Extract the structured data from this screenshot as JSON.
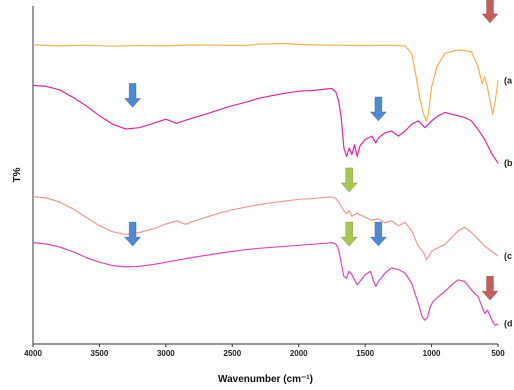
{
  "chart_data": {
    "type": "line",
    "title": "",
    "xlabel": "Wavenumber (cm⁻¹)",
    "ylabel": "T%",
    "xlim": [
      4000,
      500
    ],
    "x_reversed": true,
    "xticks": [
      4000,
      3500,
      3000,
      2500,
      2000,
      1500,
      1000,
      500
    ],
    "xtick_labels": [
      "4000",
      "3500",
      "3000",
      "2500",
      "2000",
      "1500",
      "1000",
      "500"
    ],
    "ylim": [
      0,
      100
    ],
    "y_units": "relative transmittance (arbitrary, stacked)",
    "grid": false,
    "legend": "none",
    "series": [
      {
        "label": "(a",
        "color": "#F2B24C",
        "points": [
          [
            4000,
            88.5
          ],
          [
            3800,
            88.2
          ],
          [
            3600,
            88.4
          ],
          [
            3400,
            88.1
          ],
          [
            3200,
            88.3
          ],
          [
            3000,
            88.2
          ],
          [
            2800,
            88.5
          ],
          [
            2600,
            88.4
          ],
          [
            2400,
            88.3
          ],
          [
            2300,
            88.7
          ],
          [
            2100,
            88.9
          ],
          [
            2000,
            88.6
          ],
          [
            1900,
            88.5
          ],
          [
            1700,
            88.4
          ],
          [
            1500,
            88.3
          ],
          [
            1300,
            88.4
          ],
          [
            1200,
            88.2
          ],
          [
            1150,
            86
          ],
          [
            1120,
            80
          ],
          [
            1090,
            73
          ],
          [
            1060,
            68
          ],
          [
            1040,
            66
          ],
          [
            1025,
            68
          ],
          [
            1000,
            76
          ],
          [
            960,
            82
          ],
          [
            900,
            86
          ],
          [
            800,
            87
          ],
          [
            700,
            86.5
          ],
          [
            650,
            82
          ],
          [
            620,
            77
          ],
          [
            600,
            79
          ],
          [
            580,
            76
          ],
          [
            560,
            72
          ],
          [
            540,
            68
          ],
          [
            520,
            72
          ],
          [
            500,
            78
          ]
        ]
      },
      {
        "label": "(b",
        "color": "#E0289A",
        "points": [
          [
            4000,
            76.5
          ],
          [
            3900,
            76.2
          ],
          [
            3800,
            75.2
          ],
          [
            3700,
            73
          ],
          [
            3600,
            70.5
          ],
          [
            3500,
            67.5
          ],
          [
            3400,
            65
          ],
          [
            3300,
            63.6
          ],
          [
            3200,
            64
          ],
          [
            3100,
            65.2
          ],
          [
            3000,
            66.5
          ],
          [
            2920,
            65.3
          ],
          [
            2850,
            66.2
          ],
          [
            2800,
            66.8
          ],
          [
            2700,
            68
          ],
          [
            2600,
            69.3
          ],
          [
            2500,
            70.5
          ],
          [
            2400,
            71.5
          ],
          [
            2300,
            72.7
          ],
          [
            2200,
            73.5
          ],
          [
            2100,
            74.2
          ],
          [
            2000,
            74.8
          ],
          [
            1900,
            75
          ],
          [
            1800,
            75.4
          ],
          [
            1750,
            75.6
          ],
          [
            1720,
            74.5
          ],
          [
            1700,
            72
          ],
          [
            1680,
            67
          ],
          [
            1660,
            58
          ],
          [
            1640,
            55.5
          ],
          [
            1620,
            58
          ],
          [
            1600,
            56
          ],
          [
            1580,
            59
          ],
          [
            1560,
            55.5
          ],
          [
            1540,
            58.5
          ],
          [
            1500,
            60.5
          ],
          [
            1450,
            61.5
          ],
          [
            1420,
            59.5
          ],
          [
            1400,
            61
          ],
          [
            1350,
            62.5
          ],
          [
            1300,
            63
          ],
          [
            1250,
            61.5
          ],
          [
            1200,
            63
          ],
          [
            1150,
            65
          ],
          [
            1100,
            66
          ],
          [
            1050,
            64
          ],
          [
            1000,
            66
          ],
          [
            950,
            67.5
          ],
          [
            900,
            68.5
          ],
          [
            850,
            68
          ],
          [
            800,
            67.5
          ],
          [
            750,
            67
          ],
          [
            700,
            66
          ],
          [
            650,
            63.5
          ],
          [
            600,
            60.5
          ],
          [
            550,
            56.5
          ],
          [
            500,
            53.5
          ]
        ]
      },
      {
        "label": "(c",
        "color": "#EE9A92",
        "points": [
          [
            4000,
            43.6
          ],
          [
            3900,
            43.2
          ],
          [
            3800,
            42
          ],
          [
            3700,
            40
          ],
          [
            3600,
            37.5
          ],
          [
            3500,
            35
          ],
          [
            3400,
            33.2
          ],
          [
            3300,
            32.4
          ],
          [
            3200,
            33
          ],
          [
            3100,
            34
          ],
          [
            3000,
            35.5
          ],
          [
            2920,
            36.4
          ],
          [
            2850,
            35.4
          ],
          [
            2800,
            36.2
          ],
          [
            2700,
            37.5
          ],
          [
            2600,
            38.7
          ],
          [
            2500,
            39.7
          ],
          [
            2400,
            40.5
          ],
          [
            2300,
            41.2
          ],
          [
            2200,
            41.8
          ],
          [
            2100,
            42.3
          ],
          [
            2000,
            42.8
          ],
          [
            1900,
            43
          ],
          [
            1800,
            43.4
          ],
          [
            1750,
            43.5
          ],
          [
            1720,
            43
          ],
          [
            1700,
            42
          ],
          [
            1670,
            40
          ],
          [
            1640,
            38.5
          ],
          [
            1620,
            39.5
          ],
          [
            1600,
            37.8
          ],
          [
            1560,
            38.7
          ],
          [
            1500,
            37.5
          ],
          [
            1450,
            36.7
          ],
          [
            1400,
            37
          ],
          [
            1350,
            35.8
          ],
          [
            1300,
            36.5
          ],
          [
            1250,
            35
          ],
          [
            1200,
            36
          ],
          [
            1150,
            33.5
          ],
          [
            1100,
            29
          ],
          [
            1060,
            27
          ],
          [
            1040,
            25
          ],
          [
            1020,
            26
          ],
          [
            1000,
            27.5
          ],
          [
            950,
            28.5
          ],
          [
            900,
            29.5
          ],
          [
            850,
            31.5
          ],
          [
            800,
            33.5
          ],
          [
            750,
            34.5
          ],
          [
            700,
            33
          ],
          [
            650,
            31
          ],
          [
            600,
            29
          ],
          [
            550,
            27.5
          ],
          [
            500,
            26
          ]
        ]
      },
      {
        "label": "(d",
        "color": "#E048B8",
        "points": [
          [
            4000,
            30
          ],
          [
            3900,
            29.6
          ],
          [
            3800,
            28.7
          ],
          [
            3700,
            27.3
          ],
          [
            3600,
            25.6
          ],
          [
            3500,
            24.2
          ],
          [
            3400,
            23.2
          ],
          [
            3300,
            22.8
          ],
          [
            3200,
            23
          ],
          [
            3100,
            23.5
          ],
          [
            3000,
            24.2
          ],
          [
            2900,
            24.9
          ],
          [
            2800,
            25.6
          ],
          [
            2700,
            26.2
          ],
          [
            2600,
            26.8
          ],
          [
            2500,
            27.4
          ],
          [
            2400,
            27.9
          ],
          [
            2300,
            28.3
          ],
          [
            2200,
            28.6
          ],
          [
            2100,
            28.9
          ],
          [
            2000,
            29.2
          ],
          [
            1900,
            29.5
          ],
          [
            1800,
            29.8
          ],
          [
            1750,
            30
          ],
          [
            1720,
            29.5
          ],
          [
            1700,
            28
          ],
          [
            1680,
            24
          ],
          [
            1660,
            20
          ],
          [
            1640,
            19.5
          ],
          [
            1620,
            21.5
          ],
          [
            1600,
            20.5
          ],
          [
            1580,
            19
          ],
          [
            1560,
            17.5
          ],
          [
            1540,
            18.5
          ],
          [
            1500,
            20.5
          ],
          [
            1460,
            21.5
          ],
          [
            1440,
            19
          ],
          [
            1420,
            17
          ],
          [
            1400,
            18.5
          ],
          [
            1350,
            21
          ],
          [
            1300,
            22.5
          ],
          [
            1250,
            22
          ],
          [
            1200,
            21
          ],
          [
            1150,
            18
          ],
          [
            1100,
            12
          ],
          [
            1070,
            8
          ],
          [
            1050,
            7
          ],
          [
            1030,
            8
          ],
          [
            1010,
            11
          ],
          [
            990,
            12.5
          ],
          [
            950,
            14
          ],
          [
            900,
            15.5
          ],
          [
            850,
            17.5
          ],
          [
            800,
            19
          ],
          [
            750,
            18.5
          ],
          [
            700,
            16
          ],
          [
            650,
            14
          ],
          [
            620,
            11
          ],
          [
            600,
            9
          ],
          [
            580,
            10
          ],
          [
            560,
            8.5
          ],
          [
            540,
            6.5
          ],
          [
            520,
            5.5
          ],
          [
            500,
            6
          ]
        ]
      }
    ],
    "annotations": [
      {
        "type": "arrow",
        "color": "#4A8AD8",
        "x": 3250,
        "y": 70
      },
      {
        "type": "arrow",
        "color": "#4A8AD8",
        "x": 1400,
        "y": 66
      },
      {
        "type": "arrow",
        "color": "#4A8AD8",
        "x": 3250,
        "y": 29
      },
      {
        "type": "arrow",
        "color": "#4A8AD8",
        "x": 1400,
        "y": 29
      },
      {
        "type": "arrow",
        "color": "#A8C850",
        "x": 1620,
        "y": 45
      },
      {
        "type": "arrow",
        "color": "#A8C850",
        "x": 1620,
        "y": 29
      },
      {
        "type": "arrow",
        "color": "#C85A5A",
        "x": 560,
        "y": 95
      },
      {
        "type": "arrow",
        "color": "#C85A5A",
        "x": 560,
        "y": 13
      }
    ]
  }
}
